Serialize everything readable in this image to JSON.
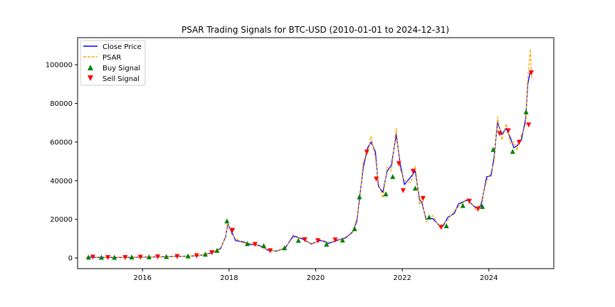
{
  "chart_data": {
    "type": "line",
    "title": "PSAR Trading Signals for BTC-USD (2010-01-01 to 2024-12-31)",
    "xlabel": "",
    "ylabel": "",
    "xlim": [
      2014.5,
      2025.5
    ],
    "ylim": [
      -5500,
      114000
    ],
    "x_ticks": [
      2016,
      2018,
      2020,
      2022,
      2024
    ],
    "x_tick_labels": [
      "2016",
      "2018",
      "2020",
      "2022",
      "2024"
    ],
    "y_ticks": [
      0,
      20000,
      40000,
      60000,
      80000,
      100000
    ],
    "y_tick_labels": [
      "0",
      "20000",
      "40000",
      "60000",
      "80000",
      "100000"
    ],
    "grid": false,
    "legend_position": "top-left",
    "series": [
      {
        "name": "Close Price",
        "style": "solid",
        "color": "#0000ff",
        "x": [
          2014.71,
          2015.0,
          2015.5,
          2016.0,
          2016.5,
          2017.0,
          2017.3,
          2017.6,
          2017.8,
          2017.92,
          2017.97,
          2018.05,
          2018.15,
          2018.3,
          2018.5,
          2018.7,
          2018.9,
          2019.1,
          2019.3,
          2019.48,
          2019.7,
          2019.9,
          2020.1,
          2020.2,
          2020.3,
          2020.5,
          2020.7,
          2020.85,
          2020.95,
          2021.02,
          2021.1,
          2021.2,
          2021.28,
          2021.38,
          2021.45,
          2021.55,
          2021.65,
          2021.75,
          2021.86,
          2021.95,
          2022.05,
          2022.2,
          2022.3,
          2022.4,
          2022.45,
          2022.55,
          2022.7,
          2022.87,
          2022.95,
          2023.05,
          2023.2,
          2023.3,
          2023.5,
          2023.7,
          2023.82,
          2023.95,
          2024.05,
          2024.12,
          2024.2,
          2024.3,
          2024.4,
          2024.5,
          2024.58,
          2024.65,
          2024.75,
          2024.85,
          2024.9,
          2024.96,
          2024.99
        ],
        "values": [
          450,
          300,
          260,
          430,
          650,
          950,
          1200,
          2700,
          4800,
          11000,
          17500,
          14000,
          9000,
          8500,
          7000,
          6500,
          4000,
          3600,
          5200,
          11500,
          9800,
          7300,
          9000,
          8700,
          7500,
          9200,
          10500,
          13500,
          19000,
          32000,
          47000,
          57000,
          60000,
          55000,
          37000,
          34000,
          45000,
          48000,
          64000,
          49000,
          38000,
          42000,
          45000,
          30000,
          29000,
          20000,
          20500,
          16500,
          16800,
          21000,
          23000,
          28000,
          30000,
          26000,
          27000,
          42000,
          42500,
          52000,
          70000,
          64000,
          67000,
          62000,
          57000,
          58000,
          61000,
          72000,
          90000,
          97000,
          95000
        ]
      },
      {
        "name": "PSAR",
        "style": "dashed",
        "color": "#ffa500",
        "x": [
          2014.71,
          2015.0,
          2015.5,
          2016.0,
          2016.5,
          2017.0,
          2017.3,
          2017.6,
          2017.8,
          2017.92,
          2017.97,
          2018.05,
          2018.15,
          2018.3,
          2018.5,
          2018.7,
          2018.9,
          2019.1,
          2019.3,
          2019.48,
          2019.7,
          2019.9,
          2020.1,
          2020.2,
          2020.3,
          2020.5,
          2020.7,
          2020.85,
          2020.95,
          2021.02,
          2021.1,
          2021.2,
          2021.28,
          2021.38,
          2021.45,
          2021.55,
          2021.65,
          2021.75,
          2021.86,
          2021.95,
          2022.05,
          2022.2,
          2022.3,
          2022.4,
          2022.45,
          2022.55,
          2022.7,
          2022.87,
          2022.95,
          2023.05,
          2023.2,
          2023.3,
          2023.5,
          2023.7,
          2023.82,
          2023.95,
          2024.05,
          2024.12,
          2024.2,
          2024.3,
          2024.4,
          2024.5,
          2024.58,
          2024.65,
          2024.75,
          2024.85,
          2024.9,
          2024.96,
          2024.99
        ],
        "values": [
          520,
          360,
          310,
          390,
          700,
          880,
          1300,
          2400,
          5200,
          10500,
          19000,
          12500,
          10200,
          7800,
          7600,
          6000,
          4400,
          3300,
          5800,
          10500,
          10400,
          6900,
          9600,
          8000,
          8200,
          8700,
          11100,
          12800,
          20500,
          30000,
          50000,
          54000,
          63000,
          52000,
          39000,
          31000,
          47000,
          45000,
          67000,
          46000,
          40000,
          39000,
          47500,
          27500,
          31000,
          18500,
          22000,
          15800,
          18000,
          19500,
          24500,
          26500,
          31000,
          25000,
          28500,
          40000,
          44500,
          49500,
          73000,
          61000,
          69500,
          59000,
          60000,
          55500,
          63500,
          69000,
          93000,
          108000,
          92000
        ]
      }
    ],
    "buy_signals": {
      "name": "Buy Signal",
      "color": "#008000",
      "x": [
        2014.75,
        2015.05,
        2015.35,
        2015.75,
        2016.15,
        2016.55,
        2017.05,
        2017.45,
        2017.72,
        2017.95,
        2018.42,
        2018.8,
        2019.28,
        2019.6,
        2020.25,
        2020.62,
        2020.9,
        2021.01,
        2021.62,
        2021.78,
        2022.3,
        2022.62,
        2023.02,
        2023.4,
        2023.85,
        2024.1,
        2024.55,
        2024.86
      ],
      "values": [
        300,
        200,
        200,
        350,
        450,
        600,
        900,
        1800,
        3800,
        19000,
        7300,
        6200,
        5100,
        9000,
        7000,
        9100,
        15000,
        31500,
        33000,
        42000,
        36000,
        21000,
        16500,
        27000,
        26500,
        56000,
        55000,
        75500
      ]
    },
    "sell_signals": {
      "name": "Sell Signal",
      "color": "#ff0000",
      "x": [
        2014.85,
        2015.2,
        2015.6,
        2015.95,
        2016.35,
        2016.8,
        2017.25,
        2017.6,
        2018.08,
        2018.6,
        2018.95,
        2019.75,
        2020.05,
        2020.45,
        2021.18,
        2021.4,
        2021.92,
        2022.02,
        2022.25,
        2022.48,
        2022.9,
        2023.55,
        2023.75,
        2024.25,
        2024.45,
        2024.7,
        2024.92,
        2024.98
      ],
      "values": [
        600,
        400,
        400,
        550,
        750,
        950,
        1300,
        2900,
        14500,
        7200,
        3900,
        9600,
        9100,
        9500,
        55000,
        41000,
        49000,
        35000,
        45000,
        31000,
        16000,
        29500,
        25500,
        64500,
        66000,
        60000,
        69000,
        96000
      ]
    }
  }
}
